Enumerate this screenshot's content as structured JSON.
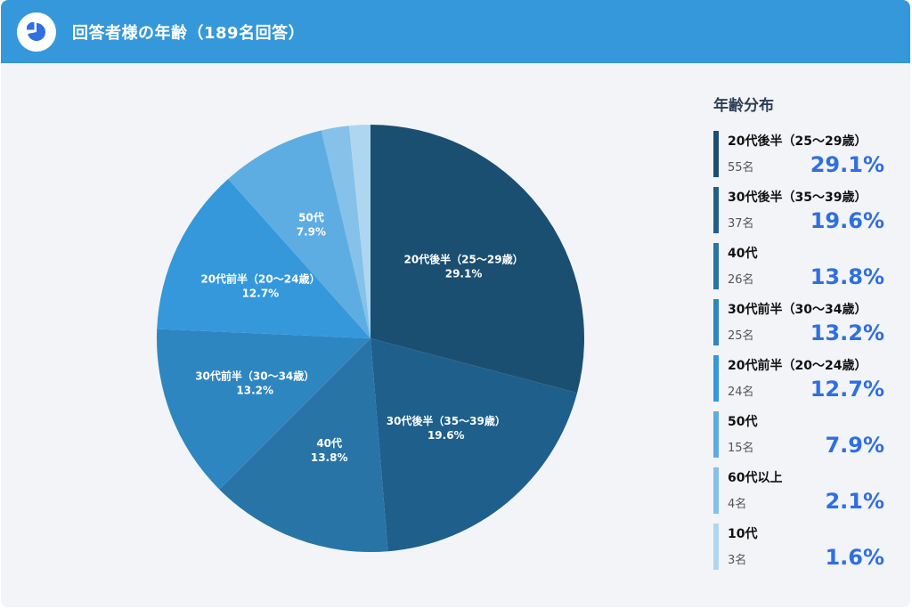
{
  "header": {
    "title": "回答者様の年齢（189名回答）",
    "icon": "pie-chart-icon"
  },
  "legend": {
    "title": "年齢分布",
    "items": [
      {
        "label": "20代後半（25〜29歳）",
        "count": "55名",
        "percent": "29.1%",
        "color": "#1b4f72"
      },
      {
        "label": "30代後半（35〜39歳）",
        "count": "37名",
        "percent": "19.6%",
        "color": "#1f5f8b"
      },
      {
        "label": "40代",
        "count": "26名",
        "percent": "13.8%",
        "color": "#2874a6"
      },
      {
        "label": "30代前半（30〜34歳）",
        "count": "25名",
        "percent": "13.2%",
        "color": "#2e86c1"
      },
      {
        "label": "20代前半（20〜24歳）",
        "count": "24名",
        "percent": "12.7%",
        "color": "#3498db"
      },
      {
        "label": "50代",
        "count": "15名",
        "percent": "7.9%",
        "color": "#5dade2"
      },
      {
        "label": "60代以上",
        "count": "4名",
        "percent": "2.1%",
        "color": "#85c1e9"
      },
      {
        "label": "10代",
        "count": "3名",
        "percent": "1.6%",
        "color": "#aed6f1"
      }
    ]
  },
  "chart_data": {
    "type": "pie",
    "title": "回答者様の年齢（189名回答）",
    "categories": [
      "20代後半（25〜29歳）",
      "30代後半（35〜39歳）",
      "40代",
      "30代前半（30〜34歳）",
      "20代前半（20〜24歳）",
      "50代",
      "60代以上",
      "10代"
    ],
    "values": [
      29.1,
      19.6,
      13.8,
      13.2,
      12.7,
      7.9,
      2.1,
      1.6
    ],
    "counts": [
      55,
      37,
      26,
      25,
      24,
      15,
      4,
      3
    ],
    "colors": [
      "#1b4f72",
      "#1f5f8b",
      "#2874a6",
      "#2e86c1",
      "#3498db",
      "#5dade2",
      "#85c1e9",
      "#aed6f1"
    ],
    "slice_labels": [
      {
        "line1": "20代後半（25〜29歳）",
        "line2": "29.1%"
      },
      {
        "line1": "30代後半（35〜39歳）",
        "line2": "19.6%"
      },
      {
        "line1": "40代",
        "line2": "13.8%"
      },
      {
        "line1": "30代前半（30〜34歳）",
        "line2": "13.2%"
      },
      {
        "line1": "20代前半（20〜24歳）",
        "line2": "12.7%"
      },
      {
        "line1": "50代",
        "line2": "7.9%"
      },
      {
        "line1": "",
        "line2": ""
      },
      {
        "line1": "",
        "line2": ""
      }
    ],
    "legend_position": "right"
  }
}
